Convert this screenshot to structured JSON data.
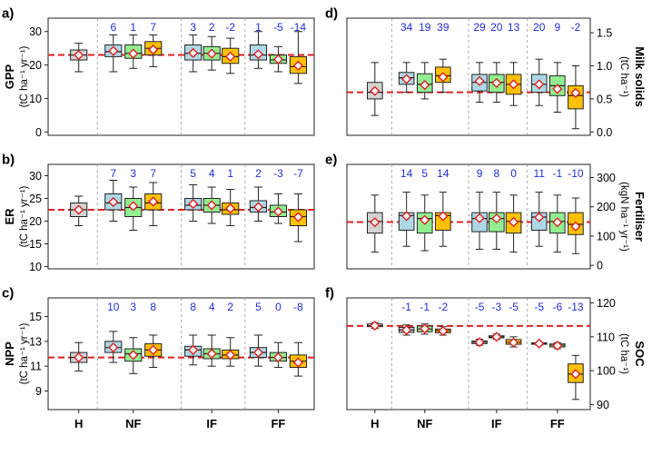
{
  "colors": {
    "H": "#d3d3d3",
    "C1": "#add8e6",
    "C2": "#90ee90",
    "C3": "#ffc107",
    "baseline": "#e02020",
    "mean_marker": "#e02020",
    "annotation": "#1f2fd4"
  },
  "x_groups": [
    "H",
    "NF",
    "IF",
    "FF"
  ],
  "chart_data": [
    {
      "id": "a",
      "letter": "a)",
      "type": "box",
      "side": "left",
      "ylabel": "GPP",
      "unit": "(tC ha⁻¹ yr⁻¹)",
      "ylim": [
        -1,
        34
      ],
      "ticks": [
        0,
        10,
        20,
        30
      ],
      "baseline": 23,
      "boxes": [
        {
          "pos": "H",
          "color": "H",
          "min": 18,
          "q1": 21.5,
          "median": 23,
          "q3": 24.5,
          "max": 26.5,
          "mean": 23
        },
        {
          "pos": "NF1",
          "color": "C1",
          "min": 18,
          "q1": 22.5,
          "median": 24,
          "q3": 26,
          "max": 29,
          "mean": 24.2,
          "label": "6"
        },
        {
          "pos": "NF2",
          "color": "C2",
          "min": 19,
          "q1": 22,
          "median": 23.5,
          "q3": 26,
          "max": 29,
          "mean": 23.4,
          "label": "1"
        },
        {
          "pos": "NF3",
          "color": "C3",
          "min": 19.5,
          "q1": 23,
          "median": 25,
          "q3": 27,
          "max": 29,
          "mean": 24.6,
          "label": "7"
        },
        {
          "pos": "IF1",
          "color": "C1",
          "min": 18,
          "q1": 21.5,
          "median": 23.5,
          "q3": 26,
          "max": 29,
          "mean": 23.6,
          "label": "3"
        },
        {
          "pos": "IF2",
          "color": "C2",
          "min": 18.5,
          "q1": 21.5,
          "median": 23.5,
          "q3": 25.5,
          "max": 28.5,
          "mean": 23.4,
          "label": "2"
        },
        {
          "pos": "IF3",
          "color": "C3",
          "min": 17.5,
          "q1": 20.5,
          "median": 22.5,
          "q3": 25,
          "max": 28,
          "mean": 22.5,
          "label": "-2"
        },
        {
          "pos": "FF1",
          "color": "C1",
          "min": 19,
          "q1": 21.5,
          "median": 23,
          "q3": 26,
          "max": 30,
          "mean": 23.2,
          "label": "1"
        },
        {
          "pos": "FF2",
          "color": "C2",
          "min": 18,
          "q1": 20.5,
          "median": 21.5,
          "q3": 23,
          "max": 25.5,
          "mean": 21.7,
          "label": "-5"
        },
        {
          "pos": "FF3",
          "color": "C3",
          "min": 14.5,
          "q1": 17.5,
          "median": 19.5,
          "q3": 22.5,
          "max": 30,
          "mean": 19.8,
          "label": "-14"
        }
      ]
    },
    {
      "id": "b",
      "letter": "b)",
      "type": "box",
      "side": "left",
      "ylabel": "ER",
      "unit": "(tC ha⁻¹ yr⁻¹)",
      "ylim": [
        9.5,
        32.5
      ],
      "ticks": [
        10,
        15,
        20,
        25,
        30
      ],
      "baseline": 22.5,
      "boxes": [
        {
          "pos": "H",
          "color": "H",
          "min": 19,
          "q1": 21,
          "median": 22.5,
          "q3": 24,
          "max": 25.5,
          "mean": 22.5
        },
        {
          "pos": "NF1",
          "color": "C1",
          "min": 20,
          "q1": 22.5,
          "median": 24,
          "q3": 26,
          "max": 29,
          "mean": 24.2,
          "label": "7"
        },
        {
          "pos": "NF2",
          "color": "C2",
          "min": 18,
          "q1": 21,
          "median": 23,
          "q3": 25,
          "max": 27.5,
          "mean": 23.3,
          "label": "3"
        },
        {
          "pos": "NF3",
          "color": "C3",
          "min": 19,
          "q1": 22.5,
          "median": 24,
          "q3": 26,
          "max": 28.5,
          "mean": 24.3,
          "label": "7"
        },
        {
          "pos": "IF1",
          "color": "C1",
          "min": 20,
          "q1": 22.5,
          "median": 23.5,
          "q3": 25,
          "max": 28,
          "mean": 23.8,
          "label": "5"
        },
        {
          "pos": "IF2",
          "color": "C2",
          "min": 19.5,
          "q1": 22,
          "median": 23.5,
          "q3": 25,
          "max": 27.5,
          "mean": 23.5,
          "label": "4"
        },
        {
          "pos": "IF3",
          "color": "C3",
          "min": 19,
          "q1": 21.5,
          "median": 22.5,
          "q3": 24,
          "max": 27,
          "mean": 22.8,
          "label": "1"
        },
        {
          "pos": "FF1",
          "color": "C1",
          "min": 20,
          "q1": 22,
          "median": 23,
          "q3": 24.5,
          "max": 27.5,
          "mean": 23.1,
          "label": "2"
        },
        {
          "pos": "FF2",
          "color": "C2",
          "min": 19.5,
          "q1": 21,
          "median": 22,
          "q3": 23.5,
          "max": 26,
          "mean": 22.1,
          "label": "-3"
        },
        {
          "pos": "FF3",
          "color": "C3",
          "min": 15.5,
          "q1": 19,
          "median": 21,
          "q3": 22.5,
          "max": 26,
          "mean": 20.9,
          "label": "-7"
        }
      ]
    },
    {
      "id": "c",
      "letter": "c)",
      "type": "box",
      "side": "left",
      "ylabel": "NPP",
      "unit": "(tC ha⁻¹ yr⁻¹)",
      "ylim": [
        7.5,
        16.5
      ],
      "ticks": [
        9,
        11,
        13,
        15
      ],
      "baseline": 11.7,
      "boxes": [
        {
          "pos": "H",
          "color": "H",
          "min": 10.6,
          "q1": 11.3,
          "median": 11.7,
          "q3": 12.1,
          "max": 12.9,
          "mean": 11.7
        },
        {
          "pos": "NF1",
          "color": "C1",
          "min": 11.3,
          "q1": 12.1,
          "median": 12.5,
          "q3": 13,
          "max": 13.8,
          "mean": 12.5,
          "label": "10"
        },
        {
          "pos": "NF2",
          "color": "C2",
          "min": 10.4,
          "q1": 11.4,
          "median": 12,
          "q3": 12.4,
          "max": 13.3,
          "mean": 11.9,
          "label": "3"
        },
        {
          "pos": "NF3",
          "color": "C3",
          "min": 10.9,
          "q1": 11.8,
          "median": 12.3,
          "q3": 12.8,
          "max": 13.5,
          "mean": 12.3,
          "label": "8"
        },
        {
          "pos": "IF1",
          "color": "C1",
          "min": 11.1,
          "q1": 11.8,
          "median": 12.3,
          "q3": 12.6,
          "max": 13.5,
          "mean": 12.3,
          "label": "8"
        },
        {
          "pos": "IF2",
          "color": "C2",
          "min": 11,
          "q1": 11.6,
          "median": 12,
          "q3": 12.4,
          "max": 13.5,
          "mean": 12.0,
          "label": "4"
        },
        {
          "pos": "IF3",
          "color": "C3",
          "min": 11,
          "q1": 11.6,
          "median": 11.9,
          "q3": 12.3,
          "max": 13.3,
          "mean": 11.9,
          "label": "2"
        },
        {
          "pos": "FF1",
          "color": "C1",
          "min": 11,
          "q1": 11.7,
          "median": 12.1,
          "q3": 12.5,
          "max": 13.5,
          "mean": 12.1,
          "label": "5"
        },
        {
          "pos": "FF2",
          "color": "C2",
          "min": 10.9,
          "q1": 11.4,
          "median": 11.7,
          "q3": 12.1,
          "max": 12.9,
          "mean": 11.7,
          "label": "0"
        },
        {
          "pos": "FF3",
          "color": "C3",
          "min": 10.2,
          "q1": 10.9,
          "median": 11.4,
          "q3": 11.9,
          "max": 12.9,
          "mean": 11.3,
          "label": "-8"
        }
      ]
    },
    {
      "id": "d",
      "letter": "d)",
      "type": "box",
      "side": "right",
      "ylabel": "Milk solids",
      "unit": "(tC ha⁻¹)",
      "ylim": [
        -0.05,
        1.72
      ],
      "ticks": [
        0.0,
        0.5,
        1.0,
        1.5
      ],
      "baseline": 0.6,
      "boxes": [
        {
          "pos": "H",
          "color": "H",
          "min": 0.25,
          "q1": 0.5,
          "median": 0.6,
          "q3": 0.75,
          "max": 1.05,
          "mean": 0.62
        },
        {
          "pos": "NF1",
          "color": "C1",
          "min": 0.6,
          "q1": 0.72,
          "median": 0.82,
          "q3": 0.9,
          "max": 1.05,
          "mean": 0.8,
          "label": "34"
        },
        {
          "pos": "NF2",
          "color": "C2",
          "min": 0.5,
          "q1": 0.6,
          "median": 0.72,
          "q3": 0.88,
          "max": 1.05,
          "mean": 0.71,
          "label": "19"
        },
        {
          "pos": "NF3",
          "color": "C3",
          "min": 0.6,
          "q1": 0.75,
          "median": 0.85,
          "q3": 0.98,
          "max": 1.1,
          "mean": 0.83,
          "label": "39"
        },
        {
          "pos": "IF1",
          "color": "C1",
          "min": 0.45,
          "q1": 0.62,
          "median": 0.75,
          "q3": 0.87,
          "max": 1.05,
          "mean": 0.77,
          "label": "29"
        },
        {
          "pos": "IF2",
          "color": "C2",
          "min": 0.45,
          "q1": 0.6,
          "median": 0.75,
          "q3": 0.87,
          "max": 1.05,
          "mean": 0.74,
          "label": "20"
        },
        {
          "pos": "IF3",
          "color": "C3",
          "min": 0.4,
          "q1": 0.57,
          "median": 0.72,
          "q3": 0.87,
          "max": 1.05,
          "mean": 0.72,
          "label": "13"
        },
        {
          "pos": "FF1",
          "color": "C1",
          "min": 0.4,
          "q1": 0.6,
          "median": 0.72,
          "q3": 0.87,
          "max": 1.1,
          "mean": 0.72,
          "label": "20"
        },
        {
          "pos": "FF2",
          "color": "C2",
          "min": 0.3,
          "q1": 0.55,
          "median": 0.7,
          "q3": 0.85,
          "max": 1.05,
          "mean": 0.65,
          "label": "9"
        },
        {
          "pos": "FF3",
          "color": "C3",
          "min": 0.05,
          "q1": 0.35,
          "median": 0.55,
          "q3": 0.7,
          "max": 1.0,
          "mean": 0.59,
          "label": "-2"
        }
      ]
    },
    {
      "id": "e",
      "letter": "e)",
      "type": "box",
      "side": "right",
      "ylabel": "Fertiliser",
      "unit": "(kgN ha⁻¹ yr⁻¹)",
      "ylim": [
        -12,
        345
      ],
      "ticks": [
        0,
        100,
        200,
        300
      ],
      "baseline": 148,
      "boxes": [
        {
          "pos": "H",
          "color": "H",
          "min": 45,
          "q1": 110,
          "median": 150,
          "q3": 180,
          "max": 240,
          "mean": 147
        },
        {
          "pos": "NF1",
          "color": "C1",
          "min": 65,
          "q1": 120,
          "median": 170,
          "q3": 180,
          "max": 250,
          "mean": 168,
          "label": "14"
        },
        {
          "pos": "NF2",
          "color": "C2",
          "min": 50,
          "q1": 110,
          "median": 160,
          "q3": 180,
          "max": 240,
          "mean": 155,
          "label": "5"
        },
        {
          "pos": "NF3",
          "color": "C3",
          "min": 65,
          "q1": 120,
          "median": 170,
          "q3": 180,
          "max": 250,
          "mean": 168,
          "label": "14"
        },
        {
          "pos": "IF1",
          "color": "C1",
          "min": 55,
          "q1": 115,
          "median": 160,
          "q3": 180,
          "max": 250,
          "mean": 161,
          "label": "9"
        },
        {
          "pos": "IF2",
          "color": "C2",
          "min": 55,
          "q1": 115,
          "median": 160,
          "q3": 180,
          "max": 250,
          "mean": 160,
          "label": "8"
        },
        {
          "pos": "IF3",
          "color": "C3",
          "min": 45,
          "q1": 110,
          "median": 150,
          "q3": 180,
          "max": 240,
          "mean": 148,
          "label": "0"
        },
        {
          "pos": "FF1",
          "color": "C1",
          "min": 65,
          "q1": 120,
          "median": 165,
          "q3": 180,
          "max": 250,
          "mean": 164,
          "label": "11"
        },
        {
          "pos": "FF2",
          "color": "C2",
          "min": 45,
          "q1": 110,
          "median": 150,
          "q3": 180,
          "max": 240,
          "mean": 147,
          "label": "-1"
        },
        {
          "pos": "FF3",
          "color": "C3",
          "min": 40,
          "q1": 105,
          "median": 140,
          "q3": 180,
          "max": 230,
          "mean": 133,
          "label": "-10"
        }
      ]
    },
    {
      "id": "f",
      "letter": "f)",
      "type": "box",
      "side": "right",
      "ylabel": "SOC",
      "unit": "(tC ha⁻¹)",
      "ylim": [
        88.5,
        121.5
      ],
      "ticks": [
        90,
        100,
        110,
        120
      ],
      "baseline": 113.2,
      "boxes": [
        {
          "pos": "H",
          "color": "H",
          "min": 112.5,
          "q1": 113,
          "median": 113.3,
          "q3": 113.8,
          "max": 114.2,
          "mean": 113.3
        },
        {
          "pos": "NF1",
          "color": "C1",
          "min": 110.5,
          "q1": 111.3,
          "median": 112,
          "q3": 112.8,
          "max": 113.5,
          "mean": 112.0,
          "label": "-1"
        },
        {
          "pos": "NF2",
          "color": "C2",
          "min": 110.8,
          "q1": 111.5,
          "median": 112.3,
          "q3": 113.2,
          "max": 113.8,
          "mean": 112.4,
          "label": "-1"
        },
        {
          "pos": "NF3",
          "color": "C3",
          "min": 110.5,
          "q1": 111.2,
          "median": 111.8,
          "q3": 112.3,
          "max": 113,
          "mean": 111.7,
          "label": "-2"
        },
        {
          "pos": "IF1",
          "color": "C1",
          "min": 107.5,
          "q1": 108,
          "median": 108.4,
          "q3": 108.8,
          "max": 109.3,
          "mean": 108.4,
          "label": "-5"
        },
        {
          "pos": "IF2",
          "color": "C2",
          "min": 109.3,
          "q1": 109.7,
          "median": 110,
          "q3": 110.3,
          "max": 110.8,
          "mean": 110.0,
          "label": "-3"
        },
        {
          "pos": "IF3",
          "color": "C3",
          "min": 107,
          "q1": 107.8,
          "median": 108.4,
          "q3": 109.2,
          "max": 110,
          "mean": 108.3,
          "label": "-5"
        },
        {
          "pos": "FF1",
          "color": "C1",
          "min": 107.5,
          "q1": 107.8,
          "median": 108,
          "q3": 108.2,
          "max": 108.4,
          "mean": 108.0,
          "label": "-5"
        },
        {
          "pos": "FF2",
          "color": "C2",
          "min": 106.5,
          "q1": 107,
          "median": 107.5,
          "q3": 107.9,
          "max": 108.3,
          "mean": 107.4,
          "label": "-6"
        },
        {
          "pos": "FF3",
          "color": "C3",
          "min": 91.5,
          "q1": 96.5,
          "median": 99,
          "q3": 102,
          "max": 104.5,
          "mean": 99.0,
          "label": "-13"
        }
      ]
    }
  ]
}
